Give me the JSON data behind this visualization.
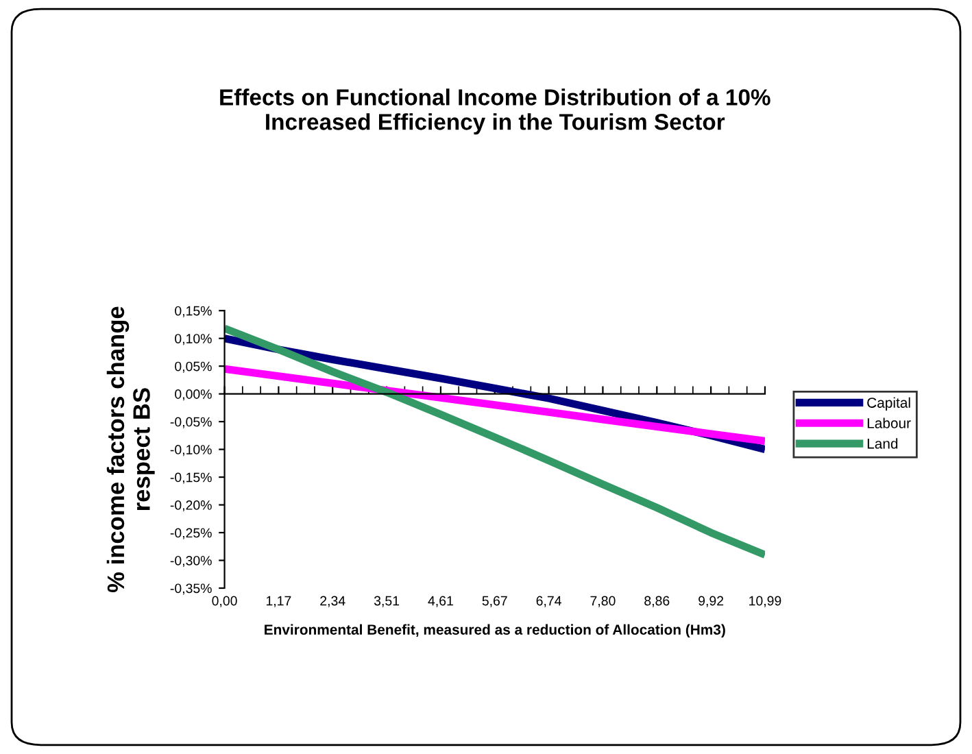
{
  "chart_data": {
    "type": "line",
    "title": "Effects on Functional Income Distribution of a 10%\nIncreased Efficiency in the Tourism Sector",
    "xlabel": "Environmental Benefit, measured as a reduction of Allocation (Hm3)",
    "ylabel": "% income factors change\nrespect BS",
    "categories": [
      "0,00",
      "1,17",
      "2,34",
      "3,51",
      "4,61",
      "5,67",
      "6,74",
      "7,80",
      "8,86",
      "9,92",
      "10,99"
    ],
    "series": [
      {
        "name": "Capital",
        "color": "#000080",
        "values": [
          0.1,
          0.08,
          0.062,
          0.045,
          0.028,
          0.01,
          -0.008,
          -0.03,
          -0.052,
          -0.075,
          -0.1
        ]
      },
      {
        "name": "Labour",
        "color": "#ff00ff",
        "values": [
          0.045,
          0.032,
          0.019,
          0.006,
          -0.007,
          -0.02,
          -0.033,
          -0.046,
          -0.059,
          -0.072,
          -0.085
        ]
      },
      {
        "name": "Land",
        "color": "#339966",
        "values": [
          0.118,
          0.08,
          0.04,
          0.003,
          -0.037,
          -0.078,
          -0.12,
          -0.163,
          -0.205,
          -0.25,
          -0.29
        ]
      }
    ],
    "ylim": [
      -0.35,
      0.15
    ],
    "yticks": [
      {
        "value": 0.15,
        "label": "0,15%"
      },
      {
        "value": 0.1,
        "label": "0,10%"
      },
      {
        "value": 0.05,
        "label": "0,05%"
      },
      {
        "value": 0,
        "label": "0,00%"
      },
      {
        "value": -0.05,
        "label": "-0,05%"
      },
      {
        "value": -0.1,
        "label": "-0,10%"
      },
      {
        "value": -0.15,
        "label": "-0,15%"
      },
      {
        "value": -0.2,
        "label": "-0,20%"
      },
      {
        "value": -0.25,
        "label": "-0,25%"
      },
      {
        "value": -0.3,
        "label": "-0,30%"
      },
      {
        "value": -0.35,
        "label": "-0,35%"
      }
    ],
    "legend": "right",
    "marker": "none",
    "line_style": "solid"
  }
}
